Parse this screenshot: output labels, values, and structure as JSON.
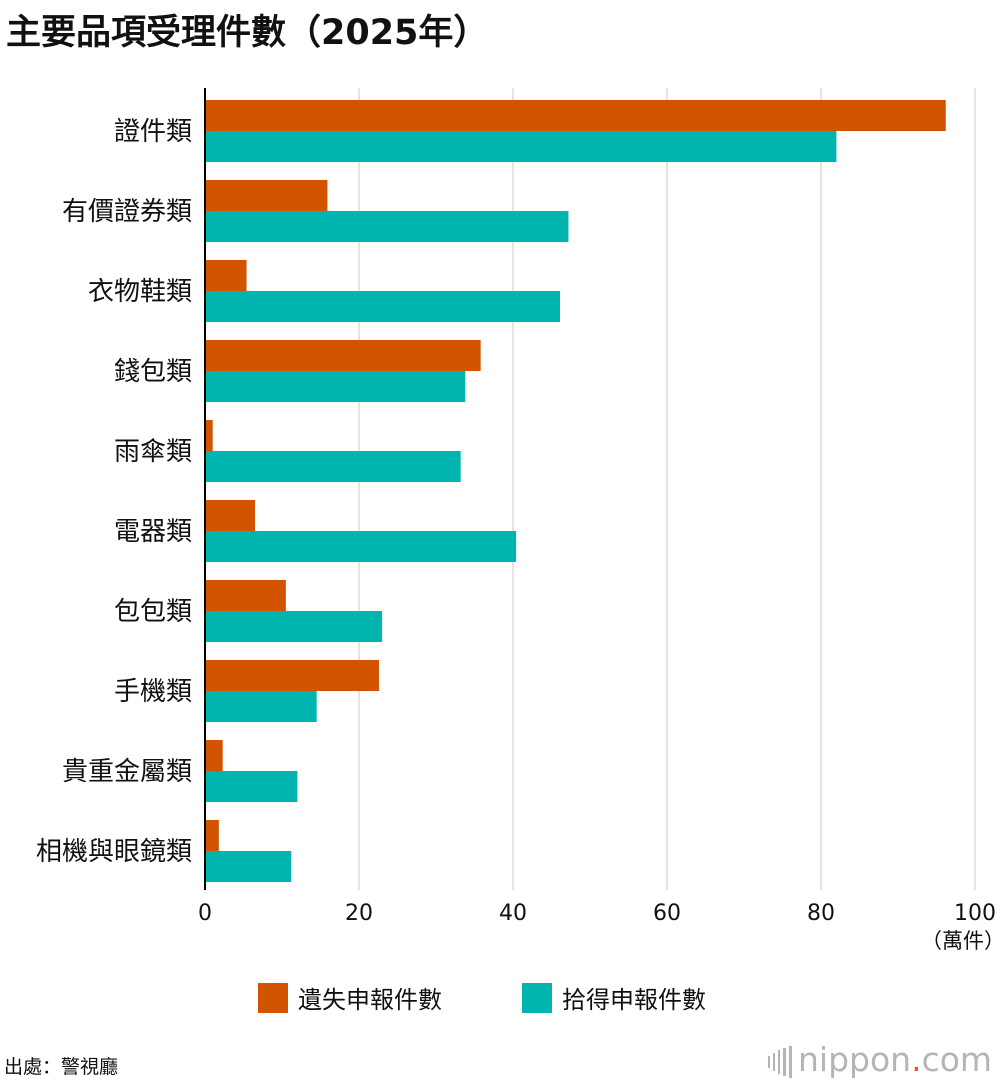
{
  "title": "主要品項受理件數（2025年）",
  "colors": {
    "lost": "#d35400",
    "found": "#00b4b0",
    "grid": "#c8c8c8",
    "axis": "#000000"
  },
  "chart_data": {
    "type": "bar",
    "orientation": "horizontal",
    "title": "主要品項受理件數（2025年）",
    "categories": [
      "證件類",
      "有價證券類",
      "衣物鞋類",
      "錢包類",
      "雨傘類",
      "電器類",
      "包包類",
      "手機類",
      "貴重金屬類",
      "相機與眼鏡類"
    ],
    "series": [
      {
        "name": "遺失申報件數",
        "color": "#d35400",
        "values": [
          96.2,
          15.9,
          5.4,
          35.8,
          1.0,
          6.5,
          10.5,
          22.6,
          2.3,
          1.8
        ]
      },
      {
        "name": "拾得申報件數",
        "color": "#00b4b0",
        "values": [
          82.0,
          47.2,
          46.1,
          33.8,
          33.2,
          40.4,
          23.0,
          14.5,
          12.0,
          11.2
        ]
      }
    ],
    "xlim": [
      0,
      100
    ],
    "xticks": [
      "0",
      "20",
      "40",
      "60",
      "80",
      "100"
    ],
    "unit_label": "（萬件）",
    "grid": true,
    "legend_position": "bottom-center"
  },
  "legend": [
    {
      "label": "遺失申報件數",
      "color": "#d35400"
    },
    {
      "label": "拾得申報件數",
      "color": "#00b4b0"
    }
  ],
  "source": "出處：警視廳",
  "logo": {
    "text_main": "nippon",
    "text_dot": ".",
    "text_tld": "com"
  }
}
